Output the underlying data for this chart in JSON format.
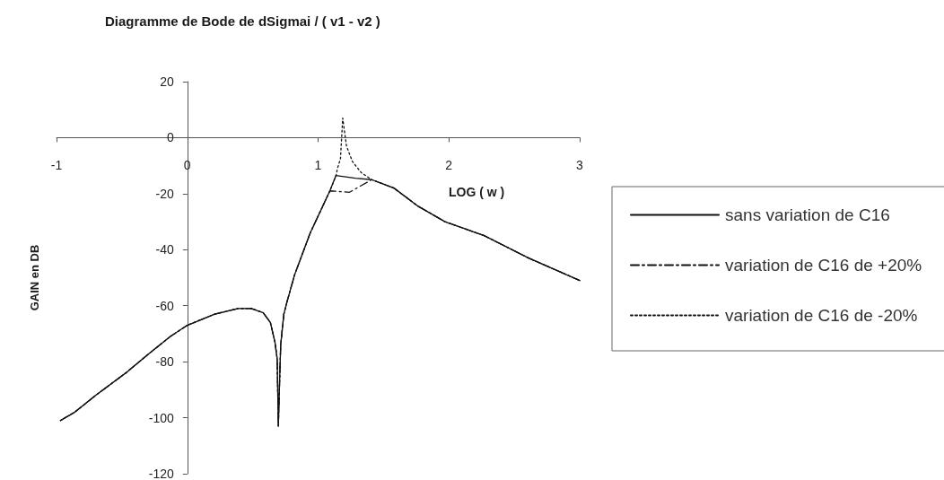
{
  "chart_data": {
    "type": "line",
    "title": "Diagramme de Bode de dSigmai / ( v1 - v2 )",
    "xlabel": "LOG ( w )",
    "ylabel": "GAIN en DB",
    "xlim": [
      -1,
      3
    ],
    "ylim": [
      -120,
      20
    ],
    "xticks": [
      -1,
      0,
      1,
      2,
      3
    ],
    "yticks": [
      -120,
      -100,
      -80,
      -60,
      -40,
      -20,
      0,
      20
    ],
    "grid": false,
    "legend": "right",
    "marker": "none",
    "series": [
      {
        "name": "sans variation de C16",
        "color": "#111111",
        "line_style": "solid",
        "x": [
          -0.97,
          -0.86,
          -0.7,
          -0.47,
          -0.29,
          -0.13,
          0,
          0.21,
          0.39,
          0.49,
          0.58,
          0.635,
          0.67,
          0.687,
          0.696,
          0.705,
          0.714,
          0.738,
          0.76,
          0.82,
          0.94,
          1.03,
          1.09,
          1.137,
          1.285,
          1.41,
          1.58,
          1.765,
          1.97,
          2.27,
          2.61,
          3.0
        ],
        "values": [
          -101,
          -98,
          -92,
          -84,
          -77,
          -71,
          -67,
          -63,
          -61,
          -61,
          -62.5,
          -66,
          -73,
          -79,
          -103,
          -88,
          -74,
          -63,
          -59,
          -49,
          -34,
          -25,
          -19,
          -13.5,
          -14.5,
          -15,
          -18,
          -24.5,
          -30,
          -35,
          -43,
          -51
        ]
      },
      {
        "name": "variation de C16 de +20%",
        "color": "#111111",
        "line_style": "dashed",
        "x": [
          -0.97,
          -0.86,
          -0.7,
          -0.47,
          -0.29,
          -0.13,
          0,
          0.21,
          0.39,
          0.49,
          0.58,
          0.635,
          0.67,
          0.687,
          0.696,
          0.705,
          0.714,
          0.738,
          0.76,
          0.82,
          0.94,
          1.03,
          1.09,
          1.24,
          1.41,
          1.58,
          1.765,
          1.97,
          2.27,
          2.61,
          3.0
        ],
        "values": [
          -101,
          -98,
          -92,
          -84,
          -77,
          -71,
          -67,
          -63,
          -61,
          -61,
          -62.5,
          -66,
          -73,
          -79,
          -103,
          -88,
          -74,
          -63,
          -59,
          -49,
          -34,
          -25,
          -19,
          -19.5,
          -15,
          -18,
          -24.5,
          -30,
          -35,
          -43,
          -51
        ]
      },
      {
        "name": "variation de C16 de -20%",
        "color": "#111111",
        "line_style": "dotted",
        "x": [
          -0.97,
          -0.86,
          -0.7,
          -0.47,
          -0.29,
          -0.13,
          0,
          0.21,
          0.39,
          0.49,
          0.58,
          0.635,
          0.67,
          0.687,
          0.696,
          0.705,
          0.714,
          0.738,
          0.76,
          0.82,
          0.94,
          1.03,
          1.09,
          1.137,
          1.148,
          1.171,
          1.18,
          1.188,
          1.217,
          1.262,
          1.33,
          1.41,
          1.58,
          1.765,
          1.97,
          2.27,
          2.61,
          3.0
        ],
        "values": [
          -101,
          -98,
          -92,
          -84,
          -77,
          -71,
          -67,
          -63,
          -61,
          -61,
          -62.5,
          -66,
          -73,
          -79,
          -103,
          -88,
          -74,
          -63,
          -59,
          -49,
          -34,
          -25,
          -19,
          -13.5,
          -11,
          -7.5,
          0,
          7,
          -3,
          -8.5,
          -12.5,
          -15,
          -18,
          -24.5,
          -30,
          -35,
          -43,
          -51
        ]
      }
    ]
  }
}
